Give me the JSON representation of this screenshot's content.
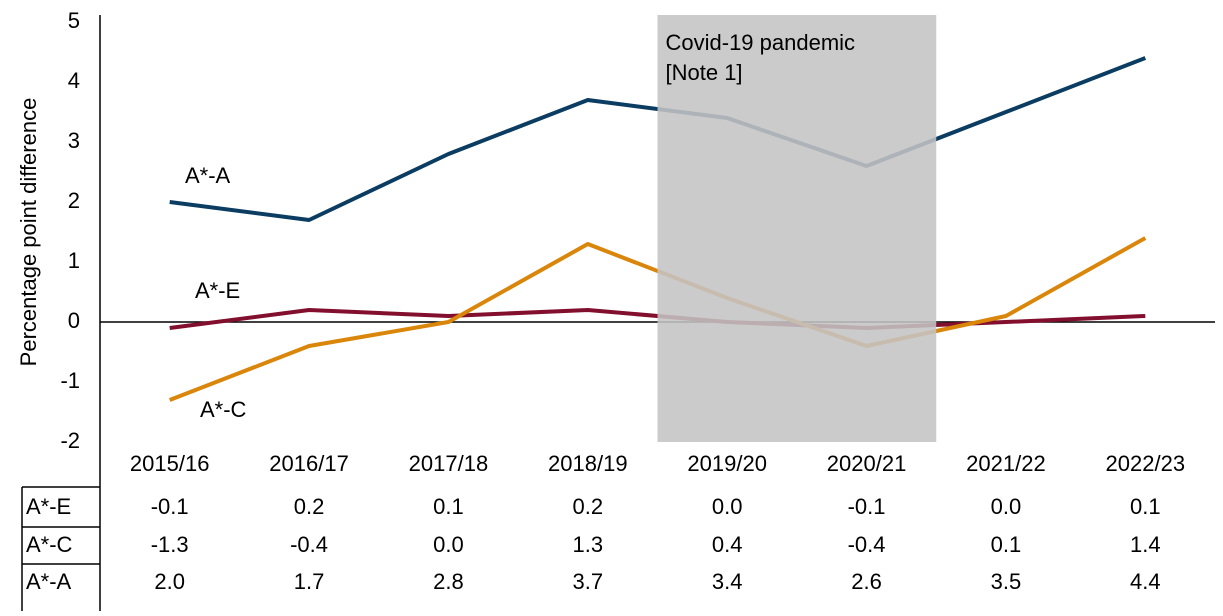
{
  "chart_data": {
    "type": "line",
    "y_label": "Percentage point difference",
    "categories": [
      "2015/16",
      "2016/17",
      "2017/18",
      "2018/19",
      "2019/20",
      "2020/21",
      "2021/22",
      "2022/23"
    ],
    "series": [
      {
        "name": "A*-E",
        "color": "#820f2d",
        "values": [
          -0.1,
          0.2,
          0.1,
          0.2,
          0,
          -0.1,
          0,
          0.1
        ],
        "value_labels": [
          "-0.1",
          "0.2",
          "0.1",
          "0.2",
          "0.0",
          "-0.1",
          "0.0",
          "0.1"
        ]
      },
      {
        "name": "A*-C",
        "color": "#d9860b",
        "values": [
          -1.3,
          -0.4,
          0,
          1.3,
          0.4,
          -0.4,
          0.1,
          1.4
        ],
        "value_labels": [
          "-1.3",
          "-0.4",
          "0.0",
          "1.3",
          "0.4",
          "-0.4",
          "0.1",
          "1.4"
        ]
      },
      {
        "name": "A*-A",
        "color": "#0b3c61",
        "values": [
          2.0,
          1.7,
          2.8,
          3.7,
          3.4,
          2.6,
          3.5,
          4.4
        ],
        "value_labels": [
          "2.0",
          "1.7",
          "2.8",
          "3.7",
          "3.4",
          "2.6",
          "3.5",
          "4.4"
        ]
      }
    ],
    "ylim": [
      -2,
      5
    ],
    "yticks": [
      -2,
      -1,
      0,
      1,
      2,
      3,
      4,
      5
    ],
    "annotation": [
      "Covid-19 pandemic",
      "[Note 1]"
    ]
  }
}
